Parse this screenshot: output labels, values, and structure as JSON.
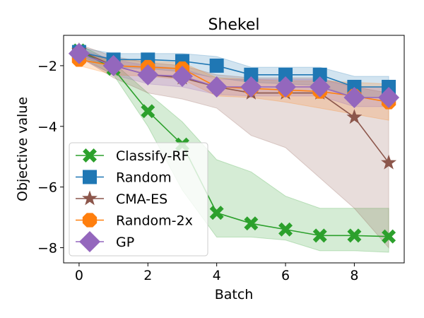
{
  "chart_data": {
    "type": "line",
    "title": "Shekel",
    "xlabel": "Batch",
    "ylabel": "Objective value",
    "xlim": [
      -0.45,
      9.45
    ],
    "ylim": [
      -8.5,
      -1.0
    ],
    "xticks": [
      0,
      2,
      4,
      6,
      8
    ],
    "yticks": [
      -2,
      -4,
      -6,
      -8
    ],
    "xtick_labels": [
      "0",
      "2",
      "4",
      "6",
      "8"
    ],
    "ytick_labels": [
      "−2",
      "−4",
      "−6",
      "−8"
    ],
    "legend_position": "lower-left",
    "x": [
      0,
      1,
      2,
      3,
      4,
      5,
      6,
      7,
      8,
      9
    ],
    "series": [
      {
        "name": "Classify-RF",
        "color": "#2ca02c",
        "marker": "x",
        "values": [
          -1.5,
          -2.1,
          -3.5,
          -4.6,
          -6.85,
          -7.2,
          -7.4,
          -7.6,
          -7.6,
          -7.63
        ],
        "band_upper": [
          -1.3,
          -1.9,
          -2.9,
          -3.85,
          -5.1,
          -5.5,
          -6.3,
          -6.7,
          -6.7,
          -6.7
        ],
        "band_lower": [
          -1.7,
          -2.3,
          -4.0,
          -6.1,
          -7.65,
          -7.65,
          -7.75,
          -8.1,
          -8.1,
          -8.15
        ]
      },
      {
        "name": "Random",
        "color": "#1f77b4",
        "marker": "square",
        "values": [
          -1.55,
          -1.8,
          -1.8,
          -1.85,
          -2.0,
          -2.3,
          -2.3,
          -2.3,
          -2.7,
          -2.7
        ],
        "band_upper": [
          -1.4,
          -1.6,
          -1.6,
          -1.6,
          -1.7,
          -2.05,
          -2.05,
          -2.05,
          -2.35,
          -2.35
        ],
        "band_lower": [
          -1.7,
          -2.05,
          -2.1,
          -2.2,
          -2.4,
          -2.55,
          -2.6,
          -2.65,
          -3.05,
          -3.05
        ]
      },
      {
        "name": "CMA-ES",
        "color": "#8c564b",
        "marker": "star",
        "values": [
          -1.5,
          -2.0,
          -2.3,
          -2.4,
          -2.7,
          -2.9,
          -2.9,
          -2.9,
          -3.7,
          -5.2
        ],
        "band_upper": [
          -1.3,
          -1.7,
          -1.9,
          -2.0,
          -2.3,
          -2.4,
          -2.4,
          -2.4,
          -2.7,
          -2.9
        ],
        "band_lower": [
          -1.7,
          -2.4,
          -2.9,
          -3.1,
          -3.4,
          -4.3,
          -4.7,
          -5.7,
          -6.7,
          -8.0
        ]
      },
      {
        "name": "Random-2x",
        "color": "#ff7f0e",
        "marker": "octagon",
        "values": [
          -1.8,
          -2.0,
          -2.05,
          -2.1,
          -2.7,
          -2.75,
          -2.8,
          -2.85,
          -3.0,
          -3.2
        ],
        "band_upper": [
          -1.6,
          -1.8,
          -1.85,
          -1.9,
          -2.4,
          -2.45,
          -2.5,
          -2.5,
          -2.55,
          -2.6
        ],
        "band_lower": [
          -2.0,
          -2.3,
          -2.35,
          -2.45,
          -3.0,
          -3.05,
          -3.2,
          -3.4,
          -3.6,
          -3.8
        ]
      },
      {
        "name": "GP",
        "color": "#9467bd",
        "marker": "diamond",
        "values": [
          -1.6,
          -2.0,
          -2.3,
          -2.35,
          -2.7,
          -2.7,
          -2.7,
          -2.7,
          -3.05,
          -3.05
        ],
        "band_upper": [
          -1.45,
          -1.8,
          -2.0,
          -2.1,
          -2.45,
          -2.45,
          -2.45,
          -2.45,
          -2.7,
          -2.7
        ],
        "band_lower": [
          -1.75,
          -2.3,
          -2.6,
          -2.7,
          -2.95,
          -3.0,
          -3.0,
          -3.0,
          -3.35,
          -3.35
        ]
      }
    ]
  }
}
